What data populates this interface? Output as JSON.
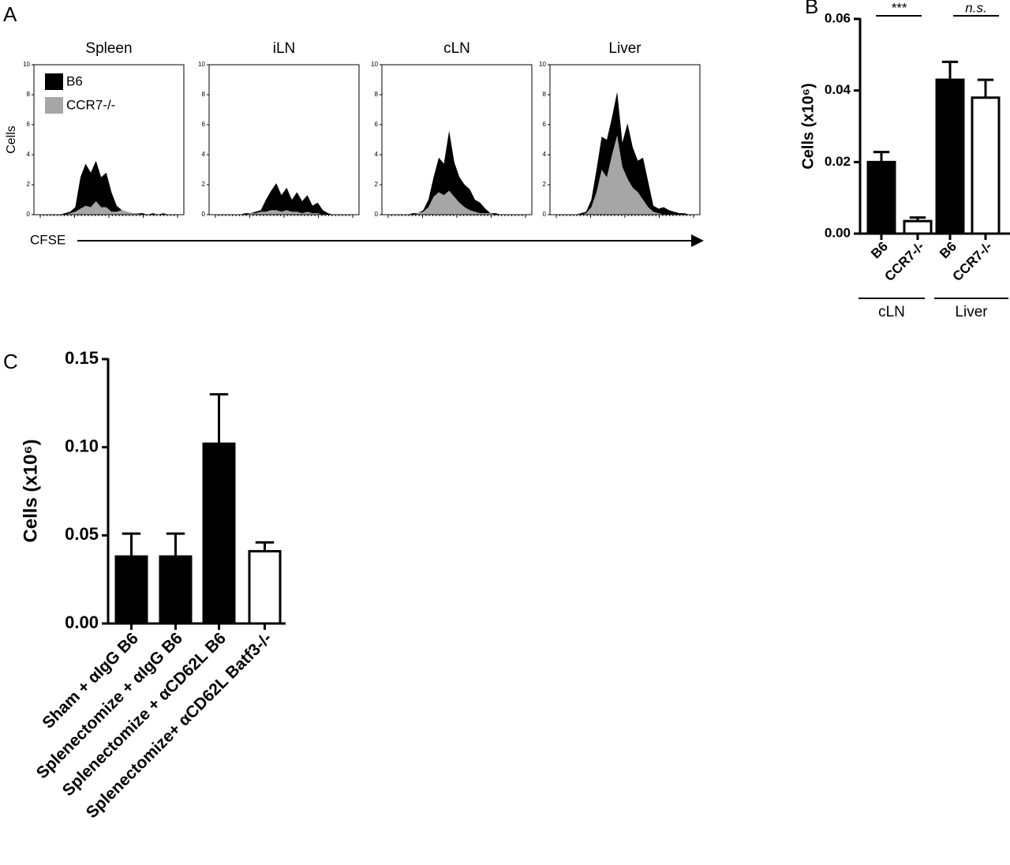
{
  "chart_data": [
    {
      "type": "area",
      "label": "A",
      "xlabel": "CFSE",
      "ylabel": "Cells",
      "x": [
        0,
        1,
        2,
        3,
        4,
        5,
        6,
        7,
        8,
        9,
        10,
        11,
        12,
        13,
        14,
        15,
        16,
        17,
        18,
        19,
        20,
        21,
        22,
        23,
        24,
        25,
        26,
        27,
        28,
        29
      ],
      "xlim": [
        0,
        29
      ],
      "ylim": [
        0,
        10
      ],
      "yticks": [
        0,
        2,
        4,
        6,
        8,
        10
      ],
      "legend": [
        {
          "name": "B6",
          "color": "#000000"
        },
        {
          "name": "CCR7-/-",
          "color": "#a6a6a6"
        }
      ],
      "panels": [
        {
          "title": "Spleen",
          "series": [
            {
              "values": [
                0,
                0,
                0,
                0,
                0,
                0,
                0.1,
                0.2,
                0.5,
                2.5,
                3.4,
                2.8,
                3.6,
                2.5,
                2.8,
                1.5,
                0.6,
                0.3,
                0.2,
                0.1,
                0.1,
                0.1,
                0,
                0.1,
                0,
                0.1,
                0,
                0,
                0,
                0
              ]
            },
            {
              "values": [
                0,
                0,
                0,
                0,
                0,
                0,
                0,
                0.1,
                0.2,
                0.4,
                0.6,
                0.5,
                0.9,
                0.5,
                0.5,
                0.2,
                0.2,
                0.3,
                0.2,
                0.1,
                0.1,
                0,
                0,
                0,
                0,
                0,
                0,
                0,
                0,
                0
              ]
            }
          ]
        },
        {
          "title": "iLN",
          "series": [
            {
              "values": [
                0,
                0,
                0,
                0,
                0,
                0,
                0,
                0.1,
                0.1,
                0.2,
                0.3,
                1.0,
                1.6,
                2.1,
                1.3,
                1.8,
                1.0,
                1.5,
                0.9,
                1.3,
                0.6,
                0.8,
                0.3,
                0.1,
                0,
                0,
                0,
                0,
                0,
                0
              ]
            },
            {
              "values": [
                0,
                0,
                0,
                0,
                0,
                0,
                0,
                0,
                0.1,
                0.1,
                0.2,
                0.2,
                0.3,
                0.3,
                0.2,
                0.3,
                0.2,
                0.2,
                0.1,
                0.2,
                0.1,
                0.1,
                0,
                0,
                0,
                0,
                0,
                0,
                0,
                0
              ]
            }
          ]
        },
        {
          "title": "cLN",
          "series": [
            {
              "values": [
                0,
                0,
                0,
                0,
                0,
                0,
                0.1,
                0.1,
                0.3,
                1.0,
                2.5,
                3.8,
                3.4,
                5.6,
                3.5,
                2.5,
                2.0,
                1.7,
                1.0,
                0.8,
                0.4,
                0.1,
                0.1,
                0,
                0,
                0,
                0,
                0,
                0,
                0
              ]
            },
            {
              "values": [
                0,
                0,
                0,
                0,
                0,
                0,
                0,
                0.1,
                0.2,
                0.5,
                1.2,
                1.5,
                1.3,
                1.6,
                1.2,
                0.8,
                0.5,
                0.3,
                0.2,
                0.1,
                0.1,
                0.1,
                0,
                0,
                0,
                0,
                0,
                0,
                0,
                0
              ]
            }
          ]
        },
        {
          "title": "Liver",
          "series": [
            {
              "values": [
                0,
                0,
                0,
                0,
                0,
                0,
                0.1,
                0.2,
                1.0,
                3.0,
                5.2,
                5.0,
                6.5,
                8.2,
                4.8,
                6.1,
                4.5,
                3.6,
                3.8,
                2.2,
                0.6,
                0.4,
                0.5,
                0.3,
                0.2,
                0.1,
                0.1,
                0,
                0,
                0
              ]
            },
            {
              "values": [
                0,
                0,
                0,
                0,
                0,
                0,
                0,
                0.1,
                0.5,
                1.5,
                3.0,
                2.5,
                4.0,
                5.3,
                3.2,
                2.4,
                1.8,
                1.5,
                1.0,
                0.5,
                0.2,
                0.1,
                0,
                0,
                0,
                0,
                0,
                0,
                0,
                0
              ]
            }
          ]
        }
      ]
    },
    {
      "type": "bar",
      "label": "B",
      "ylabel": "Cells (x10⁶)",
      "categories": [
        "B6",
        "CCR7-/-",
        "B6",
        "CCR7-/-"
      ],
      "groups": [
        "cLN",
        "Liver"
      ],
      "significance": [
        "***",
        "n.s."
      ],
      "values": [
        0.02,
        0.0035,
        0.043,
        0.038
      ],
      "errors": [
        0.0028,
        0.001,
        0.005,
        0.005
      ],
      "colors": [
        "#000000",
        "#ffffff",
        "#000000",
        "#ffffff"
      ],
      "ylim": [
        0,
        0.06
      ],
      "yticks": [
        {
          "value": 0,
          "label": "0.00"
        },
        {
          "value": 0.02,
          "label": "0.02"
        },
        {
          "value": 0.04,
          "label": "0.04"
        },
        {
          "value": 0.06,
          "label": "0.06"
        }
      ]
    },
    {
      "type": "bar",
      "label": "C",
      "ylabel": "Cells (x10⁶)",
      "categories": [
        "Sham + αIgG B6",
        "Splenectomize + αIgG B6",
        "Splenectomize + αCD62L B6",
        "Splenectomize+ αCD62L Batf3-/-"
      ],
      "values": [
        0.038,
        0.038,
        0.102,
        0.041
      ],
      "errors": [
        0.013,
        0.013,
        0.028,
        0.005
      ],
      "colors": [
        "#000000",
        "#000000",
        "#000000",
        "#ffffff"
      ],
      "ylim": [
        0,
        0.15
      ],
      "yticks": [
        {
          "value": 0,
          "label": "0.00"
        },
        {
          "value": 0.05,
          "label": "0.05"
        },
        {
          "value": 0.1,
          "label": "0.10"
        },
        {
          "value": 0.15,
          "label": "0.15"
        }
      ]
    }
  ]
}
